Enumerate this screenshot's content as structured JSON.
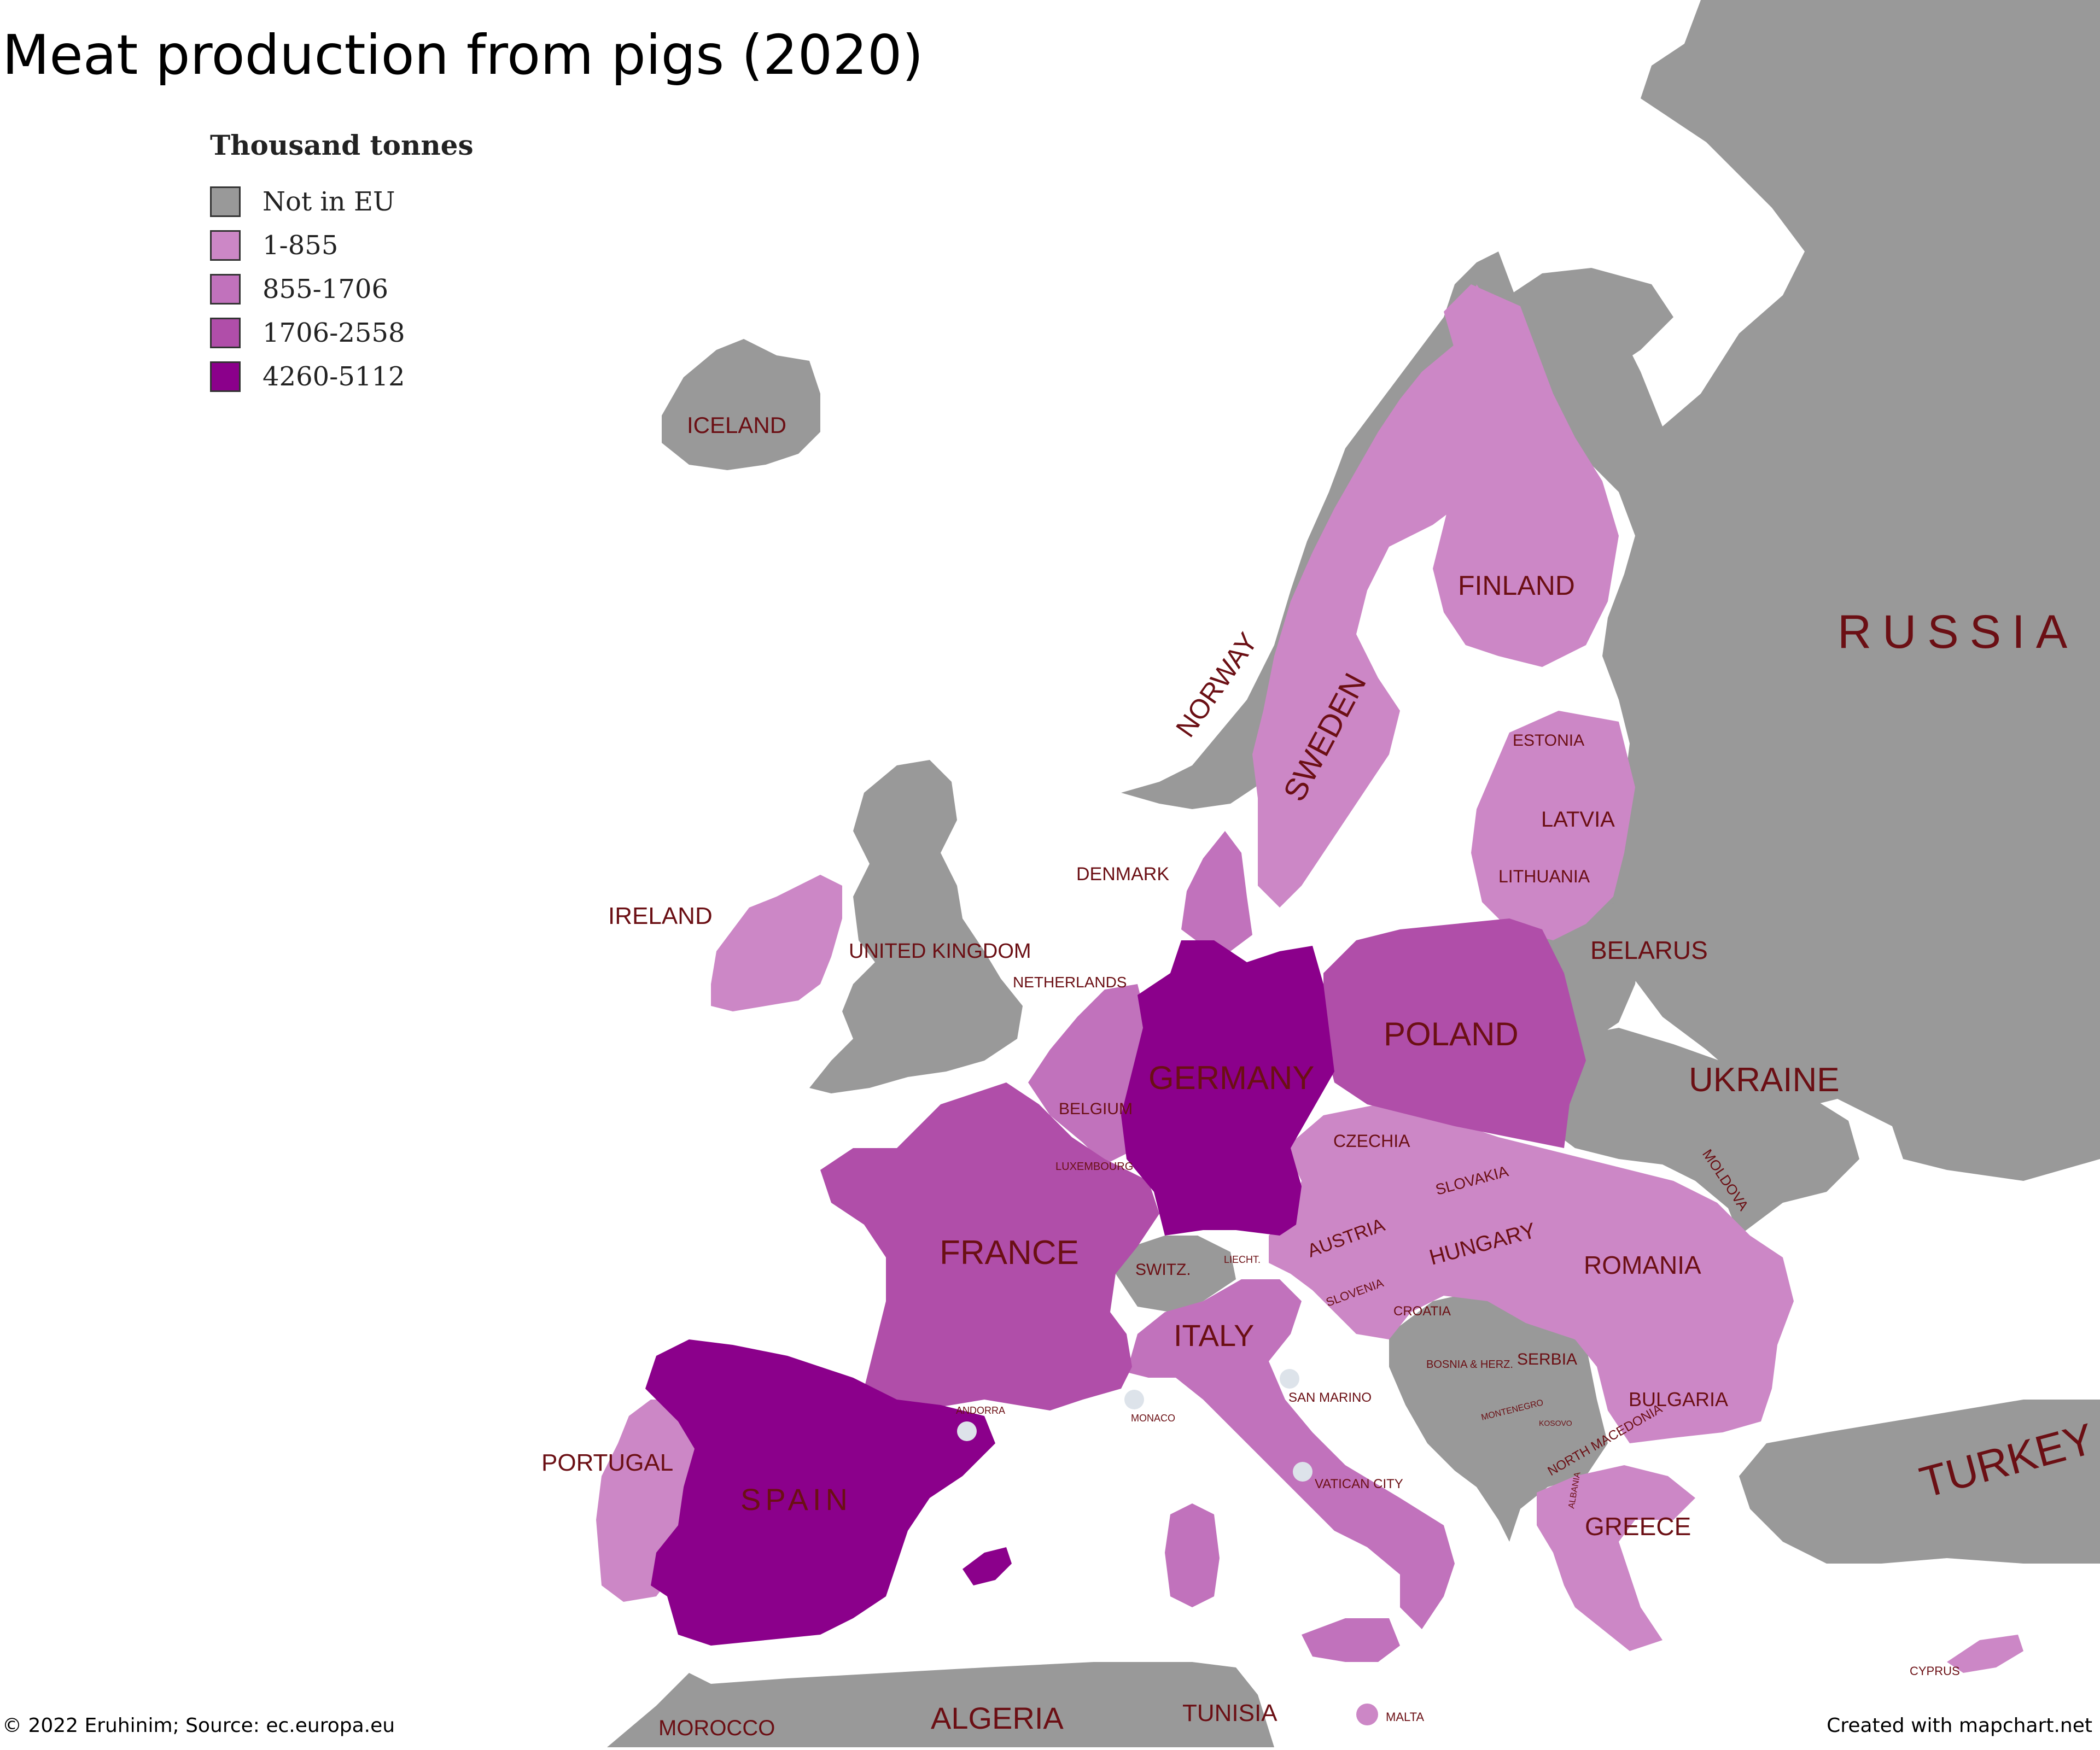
{
  "title": "Meat production from pigs (2020)",
  "legend": {
    "title": "Thousand tonnes",
    "items": [
      {
        "label": "Not in EU",
        "color": "#999999"
      },
      {
        "label": "1-855",
        "color": "#cc87c6"
      },
      {
        "label": "855-1706",
        "color": "#c172bc"
      },
      {
        "label": "1706-2558",
        "color": "#b04ea9"
      },
      {
        "label": "4260-5112",
        "color": "#8b008b"
      }
    ]
  },
  "country_labels": {
    "russia": "RUSSIA",
    "iceland": "ICELAND",
    "finland": "FINLAND",
    "norway": "NORWAY",
    "sweden": "SWEDEN",
    "estonia": "ESTONIA",
    "latvia": "LATVIA",
    "lithuania": "LITHUANIA",
    "denmark": "DENMARK",
    "ireland": "IRELAND",
    "united_kingdom": "UNITED KINGDOM",
    "belarus": "BELARUS",
    "netherlands": "NETHERLANDS",
    "poland": "POLAND",
    "germany": "GERMANY",
    "belgium": "BELGIUM",
    "ukraine": "UKRAINE",
    "czechia": "CZECHIA",
    "luxembourg": "LUXEMBOURG",
    "moldova": "MOLDOVA",
    "slovakia": "SLOVAKIA",
    "austria": "AUSTRIA",
    "hungary": "HUNGARY",
    "france": "FRANCE",
    "romania": "ROMANIA",
    "switzerland": "SWITZ.",
    "liechtenstein": "LIECHT.",
    "slovenia": "SLOVENIA",
    "croatia": "CROATIA",
    "italy": "ITALY",
    "bosnia": "BOSNIA & HERZ.",
    "serbia": "SERBIA",
    "san_marino": "SAN MARINO",
    "bulgaria": "BULGARIA",
    "andorra": "ANDORRA",
    "monaco": "MONACO",
    "montenegro": "MONTENEGRO",
    "kosovo": "KOSOVO",
    "north_macedonia": "NORTH MACEDONIA",
    "portugal": "PORTUGAL",
    "albania": "ALBANIA",
    "turkey": "TURKEY",
    "vatican": "VATICAN CITY",
    "spain": "SPAIN",
    "greece": "GREECE",
    "cyprus": "CYPRUS",
    "morocco": "MOROCCO",
    "algeria": "ALGERIA",
    "tunisia": "TUNISIA",
    "malta": "MALTA"
  },
  "production_class": {
    "germany": "4260-5112",
    "spain": "4260-5112",
    "france": "1706-2558",
    "poland": "1706-2558",
    "netherlands": "855-1706",
    "denmark": "855-1706",
    "italy": "855-1706",
    "belgium": "855-1706",
    "sweden": "1-855",
    "finland": "1-855",
    "estonia": "1-855",
    "latvia": "1-855",
    "lithuania": "1-855",
    "ireland": "1-855",
    "portugal": "1-855",
    "austria": "1-855",
    "czechia": "1-855",
    "slovakia": "1-855",
    "hungary": "1-855",
    "romania": "1-855",
    "bulgaria": "1-855",
    "greece": "1-855",
    "croatia": "1-855",
    "slovenia": "1-855",
    "cyprus": "1-855",
    "malta": "1-855",
    "luxembourg": "1-855"
  },
  "footer": {
    "source": "© 2022 Eruhinim; Source: ec.europa.eu",
    "credit": "Created with mapchart.net"
  }
}
